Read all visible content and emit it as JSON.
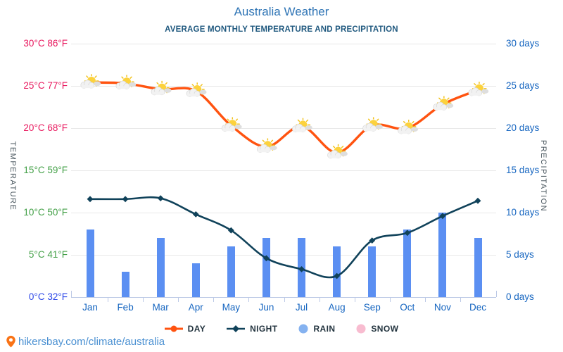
{
  "page": {
    "title": "Australia Weather",
    "subtitle": "AVERAGE MONTHLY TEMPERATURE AND PRECIPITATION",
    "footer_url": "hikersbay.com/climate/australia"
  },
  "colors": {
    "title": "#2e74b5",
    "subtitle": "#20597f",
    "day_line": "#ff5310",
    "night_line": "#10425a",
    "rain_bar": "#5b8ff2",
    "rain_legend": "#85b2f0",
    "snow_legend": "#f8bcd0",
    "month_label": "#1565c0",
    "days_label": "#1565c0",
    "temp_hot": "#e8175d",
    "temp_mild": "#43a047",
    "temp_zero": "#2b46e8",
    "footer_link": "#4a90d2",
    "pin": "#f97316"
  },
  "axes": {
    "left_title": "TEMPERATURE",
    "right_title": "PRECIPITATION",
    "left_labels": [
      {
        "text": "30°C 86°F",
        "value": 30,
        "color_key": "temp_hot"
      },
      {
        "text": "25°C 77°F",
        "value": 25,
        "color_key": "temp_hot"
      },
      {
        "text": "20°C 68°F",
        "value": 20,
        "color_key": "temp_hot"
      },
      {
        "text": "15°C 59°F",
        "value": 15,
        "color_key": "temp_mild"
      },
      {
        "text": "10°C 50°F",
        "value": 10,
        "color_key": "temp_mild"
      },
      {
        "text": "5°C 41°F",
        "value": 5,
        "color_key": "temp_mild"
      },
      {
        "text": "0°C 32°F",
        "value": 0,
        "color_key": "temp_zero"
      }
    ],
    "right_labels": [
      {
        "text": "30 days",
        "value": 30
      },
      {
        "text": "25 days",
        "value": 25
      },
      {
        "text": "20 days",
        "value": 20
      },
      {
        "text": "15 days",
        "value": 15
      },
      {
        "text": "10 days",
        "value": 10
      },
      {
        "text": "5 days",
        "value": 5
      },
      {
        "text": "0 days",
        "value": 0
      }
    ]
  },
  "chart_data": {
    "type": "line+bar",
    "categories": [
      "Jan",
      "Feb",
      "Mar",
      "Apr",
      "May",
      "Jun",
      "Jul",
      "Aug",
      "Sep",
      "Oct",
      "Nov",
      "Dec"
    ],
    "series": [
      {
        "name": "DAY",
        "type": "line",
        "unit": "°C",
        "color_key": "day_line",
        "marker": "circle-with-partly-cloudy-icon",
        "values": [
          25.4,
          25.3,
          24.6,
          24.4,
          20.3,
          17.8,
          20.2,
          17.1,
          20.3,
          20.0,
          22.8,
          24.5
        ]
      },
      {
        "name": "NIGHT",
        "type": "line",
        "unit": "°C",
        "color_key": "night_line",
        "marker": "diamond",
        "values": [
          11.6,
          11.6,
          11.7,
          9.8,
          7.9,
          4.6,
          3.3,
          2.5,
          6.7,
          7.6,
          9.6,
          11.4
        ]
      },
      {
        "name": "RAIN",
        "type": "bar",
        "unit": "days",
        "color_key": "rain_bar",
        "values": [
          8,
          3,
          7,
          4,
          6,
          7,
          7,
          6,
          6,
          8,
          10,
          7
        ]
      },
      {
        "name": "SNOW",
        "type": "bar",
        "unit": "days",
        "color_key": "snow_legend",
        "values": [
          0,
          0,
          0,
          0,
          0,
          0,
          0,
          0,
          0,
          0,
          0,
          0
        ]
      }
    ],
    "ylim_left_celsius": [
      0,
      30
    ],
    "ylim_right_days": [
      0,
      30
    ],
    "grid": true,
    "legend_position": "bottom"
  }
}
